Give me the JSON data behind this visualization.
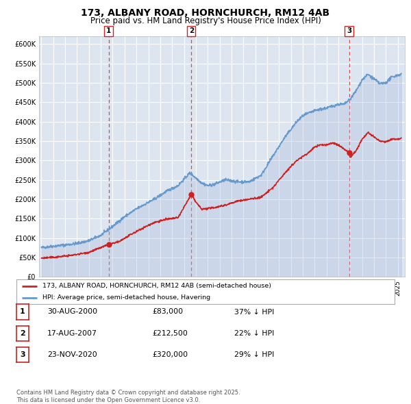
{
  "title": "173, ALBANY ROAD, HORNCHURCH, RM12 4AB",
  "subtitle": "Price paid vs. HM Land Registry's House Price Index (HPI)",
  "title_fontsize": 10,
  "subtitle_fontsize": 8.5,
  "background_color": "#ffffff",
  "plot_bg_color": "#dde6f0",
  "grid_color": "#ffffff",
  "ylim": [
    0,
    620000
  ],
  "yticks": [
    0,
    50000,
    100000,
    150000,
    200000,
    250000,
    300000,
    350000,
    400000,
    450000,
    500000,
    550000,
    600000
  ],
  "ytick_labels": [
    "£0",
    "£50K",
    "£100K",
    "£150K",
    "£200K",
    "£250K",
    "£300K",
    "£350K",
    "£400K",
    "£450K",
    "£500K",
    "£550K",
    "£600K"
  ],
  "hpi_color": "#6699cc",
  "hpi_fill_color": "#aabbdd",
  "price_color": "#cc2222",
  "sale_marker_color": "#cc2222",
  "vline_color": "#dd4444",
  "sales": [
    {
      "date_num": 2000.66,
      "price": 83000,
      "label": "1"
    },
    {
      "date_num": 2007.62,
      "price": 212500,
      "label": "2"
    },
    {
      "date_num": 2020.9,
      "price": 320000,
      "label": "3"
    }
  ],
  "legend_label_price": "173, ALBANY ROAD, HORNCHURCH, RM12 4AB (semi-detached house)",
  "legend_label_hpi": "HPI: Average price, semi-detached house, Havering",
  "table_rows": [
    {
      "label": "1",
      "date": "30-AUG-2000",
      "price": "£83,000",
      "pct": "37% ↓ HPI"
    },
    {
      "label": "2",
      "date": "17-AUG-2007",
      "price": "£212,500",
      "pct": "22% ↓ HPI"
    },
    {
      "label": "3",
      "date": "23-NOV-2020",
      "price": "£320,000",
      "pct": "29% ↓ HPI"
    }
  ],
  "footnote": "Contains HM Land Registry data © Crown copyright and database right 2025.\nThis data is licensed under the Open Government Licence v3.0.",
  "xmin": 1994.8,
  "xmax": 2025.6
}
